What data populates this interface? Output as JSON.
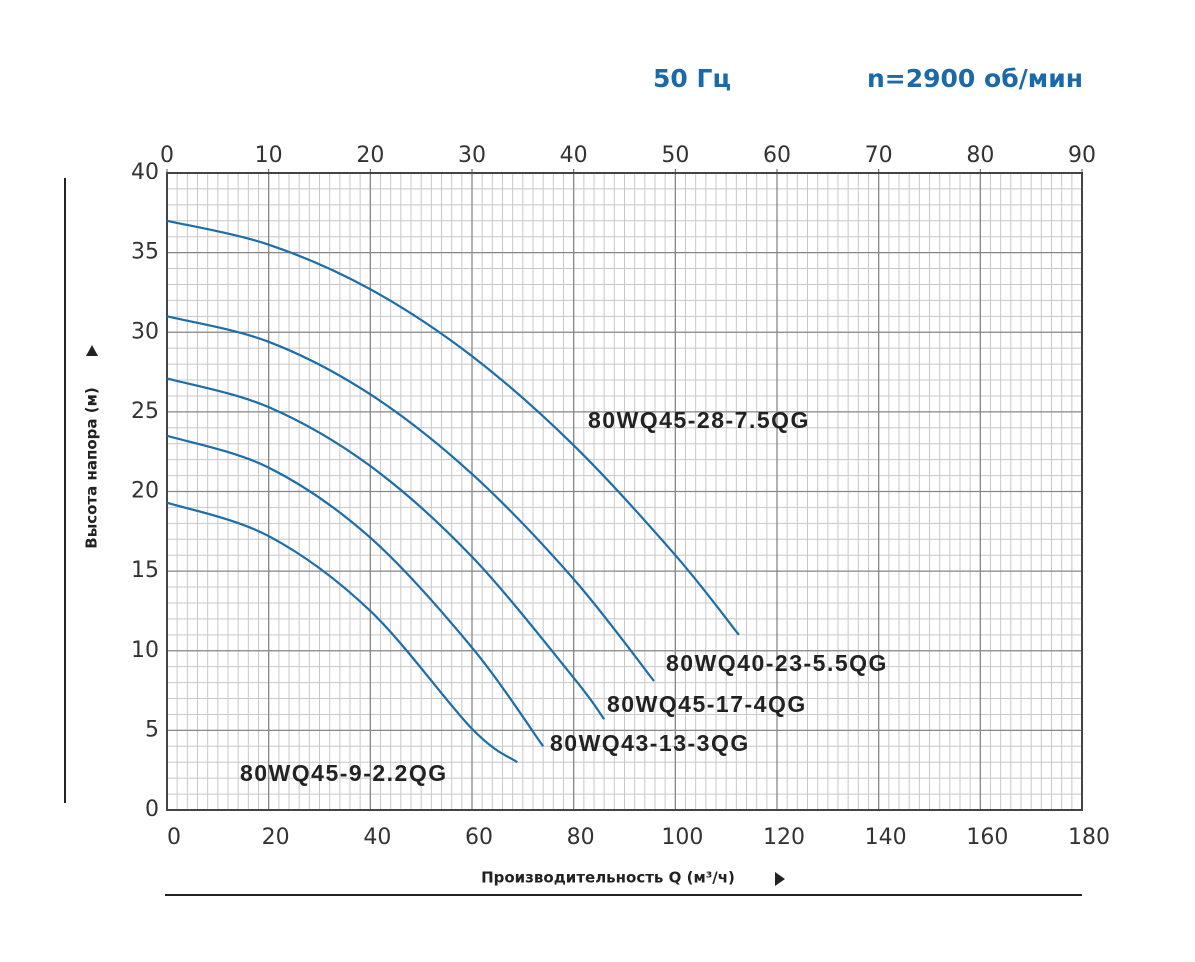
{
  "chart_data": {
    "type": "line",
    "title": "50 Гц",
    "subtitle": "n=2900 об/мин",
    "x_label": "Производительность Q (м³/ч)",
    "y_label": "Высота напора (м)",
    "xlim": [
      0,
      180
    ],
    "xticks": [
      0,
      20,
      40,
      60,
      80,
      100,
      120,
      140,
      160,
      180
    ],
    "x2lim": [
      0,
      90
    ],
    "x2ticks": [
      0,
      10,
      20,
      30,
      40,
      50,
      60,
      70,
      80,
      90
    ],
    "ylim": [
      0,
      40
    ],
    "yticks": [
      0,
      5,
      10,
      15,
      20,
      25,
      30,
      35,
      40
    ],
    "grid": true,
    "series": [
      {
        "name": "80WQ45-28-7.5QG",
        "color": "#1b6ea8",
        "x": [
          0,
          20,
          40,
          60,
          80,
          100,
          112.5
        ],
        "values": [
          37,
          35.5,
          32.7,
          28.5,
          22.9,
          16,
          11
        ]
      },
      {
        "name": "80WQ40-23-5.5QG",
        "color": "#1b6ea8",
        "x": [
          0,
          20,
          40,
          60,
          80,
          95.8
        ],
        "values": [
          31,
          29.4,
          26.1,
          21.1,
          14.5,
          8.1
        ]
      },
      {
        "name": "80WQ45-17-4QG",
        "color": "#1b6ea8",
        "x": [
          0,
          20,
          40,
          60,
          80,
          86
        ],
        "values": [
          27.1,
          25.3,
          21.6,
          15.9,
          8.3,
          5.7
        ]
      },
      {
        "name": "80WQ43-13-3QG",
        "color": "#1b6ea8",
        "x": [
          0,
          20,
          40,
          60,
          74
        ],
        "values": [
          23.5,
          21.5,
          17.1,
          10.2,
          4.0
        ]
      },
      {
        "name": "80WQ45-9-2.2QG",
        "color": "#1b6ea8",
        "x": [
          0,
          20,
          40,
          60,
          68.9
        ],
        "values": [
          19.3,
          17.2,
          12.5,
          5.1,
          3.0
        ]
      }
    ]
  }
}
